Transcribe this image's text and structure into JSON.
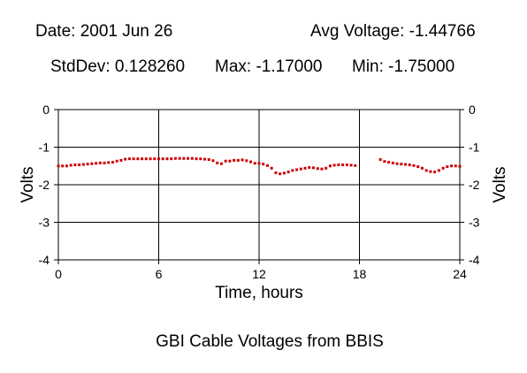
{
  "header": {
    "date": "Date: 2001 Jun 26",
    "avg": "Avg Voltage: -1.44766",
    "stddev": "StdDev: 0.128260",
    "max": "Max: -1.17000",
    "min": "Min: -1.75000"
  },
  "chart_data": {
    "type": "scatter",
    "title": "GBI Cable Voltages from BBIS",
    "xlabel": "Time, hours",
    "ylabel": "Volts",
    "xlim": [
      0,
      24
    ],
    "ylim": [
      -4,
      0
    ],
    "xticks": [
      0,
      6,
      12,
      18,
      24
    ],
    "yticks": [
      0,
      -1,
      -2,
      -3,
      -4
    ],
    "xtick_labels": [
      "0",
      "6",
      "12",
      "18",
      "24"
    ],
    "ytick_labels": [
      "0",
      "-1",
      "-2",
      "-3",
      "-4"
    ],
    "grid": true,
    "marker_color": "#cc0000",
    "series": [
      {
        "x": [
          0.0,
          0.25,
          0.5,
          0.75,
          1.0,
          1.25,
          1.5,
          1.75,
          2.0,
          2.25,
          2.5,
          2.75,
          3.0,
          3.25,
          3.5,
          3.75,
          4.0,
          4.25,
          4.5,
          4.75,
          5.0,
          5.25,
          5.5,
          5.75,
          6.0,
          6.25,
          6.5,
          6.75,
          7.0,
          7.25,
          7.5,
          7.75,
          8.0,
          8.25,
          8.5,
          8.75,
          9.0,
          9.25,
          9.5,
          9.75,
          10.0,
          10.25,
          10.5,
          10.75,
          11.0,
          11.25,
          11.5,
          11.75,
          12.0,
          12.25,
          12.5,
          12.75,
          13.0,
          13.25,
          13.5,
          13.75,
          14.0,
          14.25,
          14.5,
          14.75,
          15.0,
          15.25,
          15.5,
          15.75,
          16.0,
          16.25,
          16.5,
          16.75,
          17.0,
          17.25,
          17.5,
          17.75,
          19.25,
          19.5,
          19.75,
          20.0,
          20.25,
          20.5,
          20.75,
          21.0,
          21.25,
          21.5,
          21.75,
          22.0,
          22.25,
          22.5,
          22.75,
          23.0,
          23.25,
          23.5,
          23.75,
          24.0
        ],
        "y": [
          -1.5,
          -1.5,
          -1.5,
          -1.48,
          -1.47,
          -1.47,
          -1.46,
          -1.45,
          -1.44,
          -1.43,
          -1.42,
          -1.42,
          -1.41,
          -1.4,
          -1.37,
          -1.35,
          -1.32,
          -1.31,
          -1.31,
          -1.31,
          -1.31,
          -1.31,
          -1.31,
          -1.31,
          -1.31,
          -1.31,
          -1.31,
          -1.31,
          -1.3,
          -1.3,
          -1.3,
          -1.3,
          -1.3,
          -1.31,
          -1.31,
          -1.32,
          -1.33,
          -1.36,
          -1.42,
          -1.44,
          -1.37,
          -1.37,
          -1.35,
          -1.35,
          -1.34,
          -1.36,
          -1.39,
          -1.43,
          -1.43,
          -1.45,
          -1.49,
          -1.56,
          -1.68,
          -1.71,
          -1.69,
          -1.66,
          -1.62,
          -1.6,
          -1.58,
          -1.56,
          -1.54,
          -1.55,
          -1.57,
          -1.58,
          -1.56,
          -1.5,
          -1.48,
          -1.47,
          -1.47,
          -1.47,
          -1.48,
          -1.49,
          -1.33,
          -1.38,
          -1.4,
          -1.42,
          -1.44,
          -1.45,
          -1.46,
          -1.47,
          -1.49,
          -1.52,
          -1.56,
          -1.62,
          -1.65,
          -1.66,
          -1.62,
          -1.56,
          -1.52,
          -1.5,
          -1.5,
          -1.51
        ]
      }
    ]
  }
}
